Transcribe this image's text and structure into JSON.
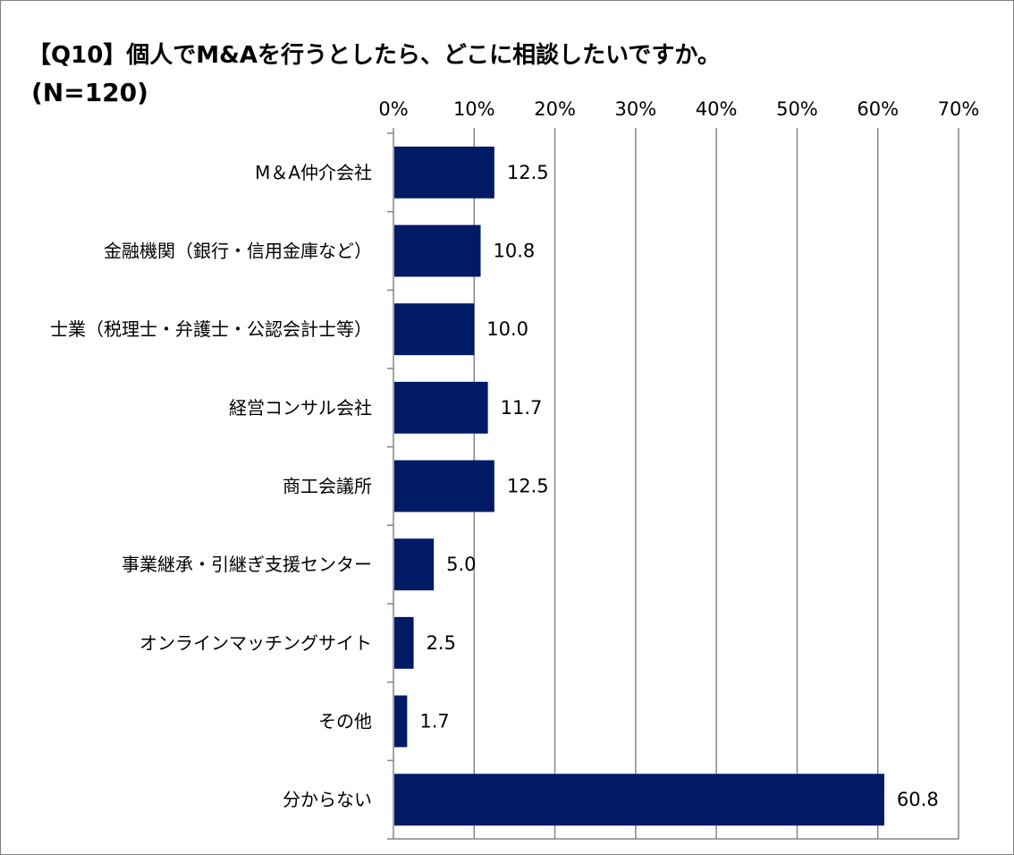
{
  "chart_data": {
    "type": "bar",
    "orientation": "horizontal",
    "title": "【Q10】個人でM&Aを行うとしたら、どこに相談したいですか。",
    "subtitle": "(N=120)",
    "categories": [
      "M＆A仲介会社",
      "金融機関（銀行・信用金庫など）",
      "士業（税理士・弁護士・公認会計士等）",
      "経営コンサル会社",
      "商工会議所",
      "事業継承・引継ぎ支援センター",
      "オンラインマッチングサイト",
      "その他",
      "分からない"
    ],
    "values": [
      12.5,
      10.8,
      10.0,
      11.7,
      12.5,
      5.0,
      2.5,
      1.7,
      60.8
    ],
    "value_labels": [
      "12.5",
      "10.8",
      "10.0",
      "11.7",
      "12.5",
      "5.0",
      "2.5",
      "1.7",
      "60.8"
    ],
    "xlim": [
      0,
      70
    ],
    "xticks": [
      "0%",
      "10%",
      "20%",
      "30%",
      "40%",
      "50%",
      "60%",
      "70%"
    ],
    "xtick_values": [
      0,
      10,
      20,
      30,
      40,
      50,
      60,
      70
    ],
    "xaxis_position": "top",
    "grid": true,
    "legend": "none",
    "bar_color": "#001a66",
    "grid_color": "#868686"
  }
}
